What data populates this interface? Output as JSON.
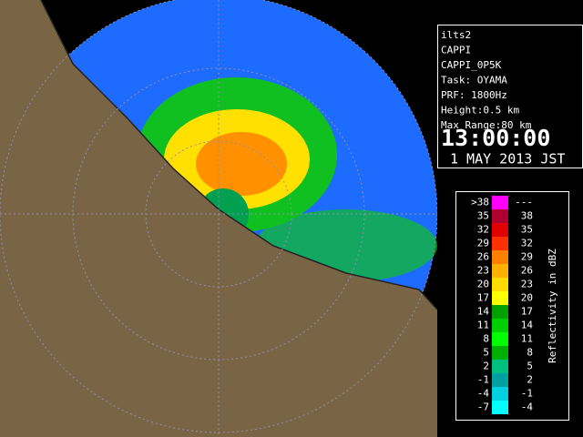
{
  "info": {
    "lines": [
      "ilts2",
      "CAPPI",
      "CAPPI_0P5K",
      "Task: OYAMA",
      "PRF: 1800Hz",
      "Height:0.5 km",
      "Max Range:80 km"
    ],
    "time": "13:00:00",
    "date": "1 MAY 2013 JST"
  },
  "legend": {
    "title": "Reflectivity in dBZ",
    "rows": [
      {
        "low": ">38",
        "high": "---",
        "color": "#ff00ff"
      },
      {
        "low": "35",
        "high": "38",
        "color": "#b00030"
      },
      {
        "low": "32",
        "high": "35",
        "color": "#e00000"
      },
      {
        "low": "29",
        "high": "32",
        "color": "#ff3000"
      },
      {
        "low": "26",
        "high": "29",
        "color": "#ff8000"
      },
      {
        "low": "23",
        "high": "26",
        "color": "#ffb000"
      },
      {
        "low": "20",
        "high": "23",
        "color": "#ffdc00"
      },
      {
        "low": "17",
        "high": "20",
        "color": "#ffff00"
      },
      {
        "low": "14",
        "high": "17",
        "color": "#00a000"
      },
      {
        "low": "11",
        "high": "14",
        "color": "#00d000"
      },
      {
        "low": "8",
        "high": "11",
        "color": "#00ff00"
      },
      {
        "low": "5",
        "high": "8",
        "color": "#00b000"
      },
      {
        "low": "2",
        "high": "5",
        "color": "#00c080"
      },
      {
        "low": "-1",
        "high": "2",
        "color": "#00a0a0"
      },
      {
        "low": "-4",
        "high": "-1",
        "color": "#00d0e0"
      },
      {
        "low": "-7",
        "high": "-4",
        "color": "#00ffff"
      }
    ]
  }
}
